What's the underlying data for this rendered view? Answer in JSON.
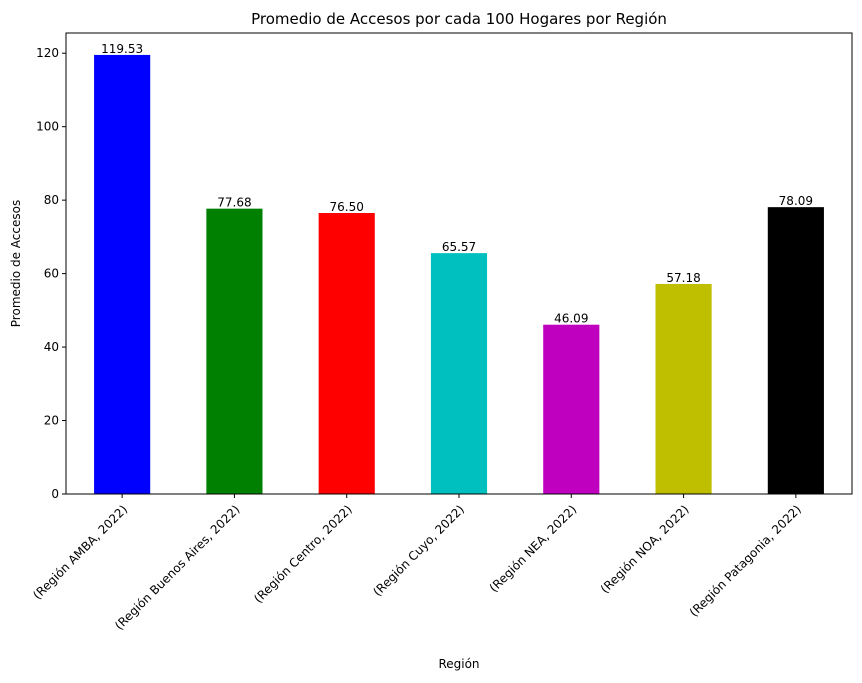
{
  "chart_data": {
    "type": "bar",
    "title": "Promedio de Accesos por cada 100 Hogares por Región",
    "xlabel": "Región",
    "ylabel": "Promedio de Accesos",
    "categories": [
      "(Región AMBA, 2022)",
      "(Región Buenos Aires, 2022)",
      "(Región Centro, 2022)",
      "(Región Cuyo, 2022)",
      "(Región NEA, 2022)",
      "(Región NOA, 2022)",
      "(Región Patagonia, 2022)"
    ],
    "values": [
      119.53,
      77.68,
      76.5,
      65.57,
      46.09,
      57.18,
      78.09
    ],
    "value_labels": [
      "119.53",
      "77.68",
      "76.50",
      "65.57",
      "46.09",
      "57.18",
      "78.09"
    ],
    "colors": [
      "#0000ff",
      "#008000",
      "#ff0000",
      "#00bfbf",
      "#bf00bf",
      "#bfbf00",
      "#000000"
    ],
    "ylim": [
      0,
      125.5
    ],
    "yticks": [
      0,
      20,
      40,
      60,
      80,
      100,
      120
    ],
    "grid": false,
    "legend": "none"
  }
}
